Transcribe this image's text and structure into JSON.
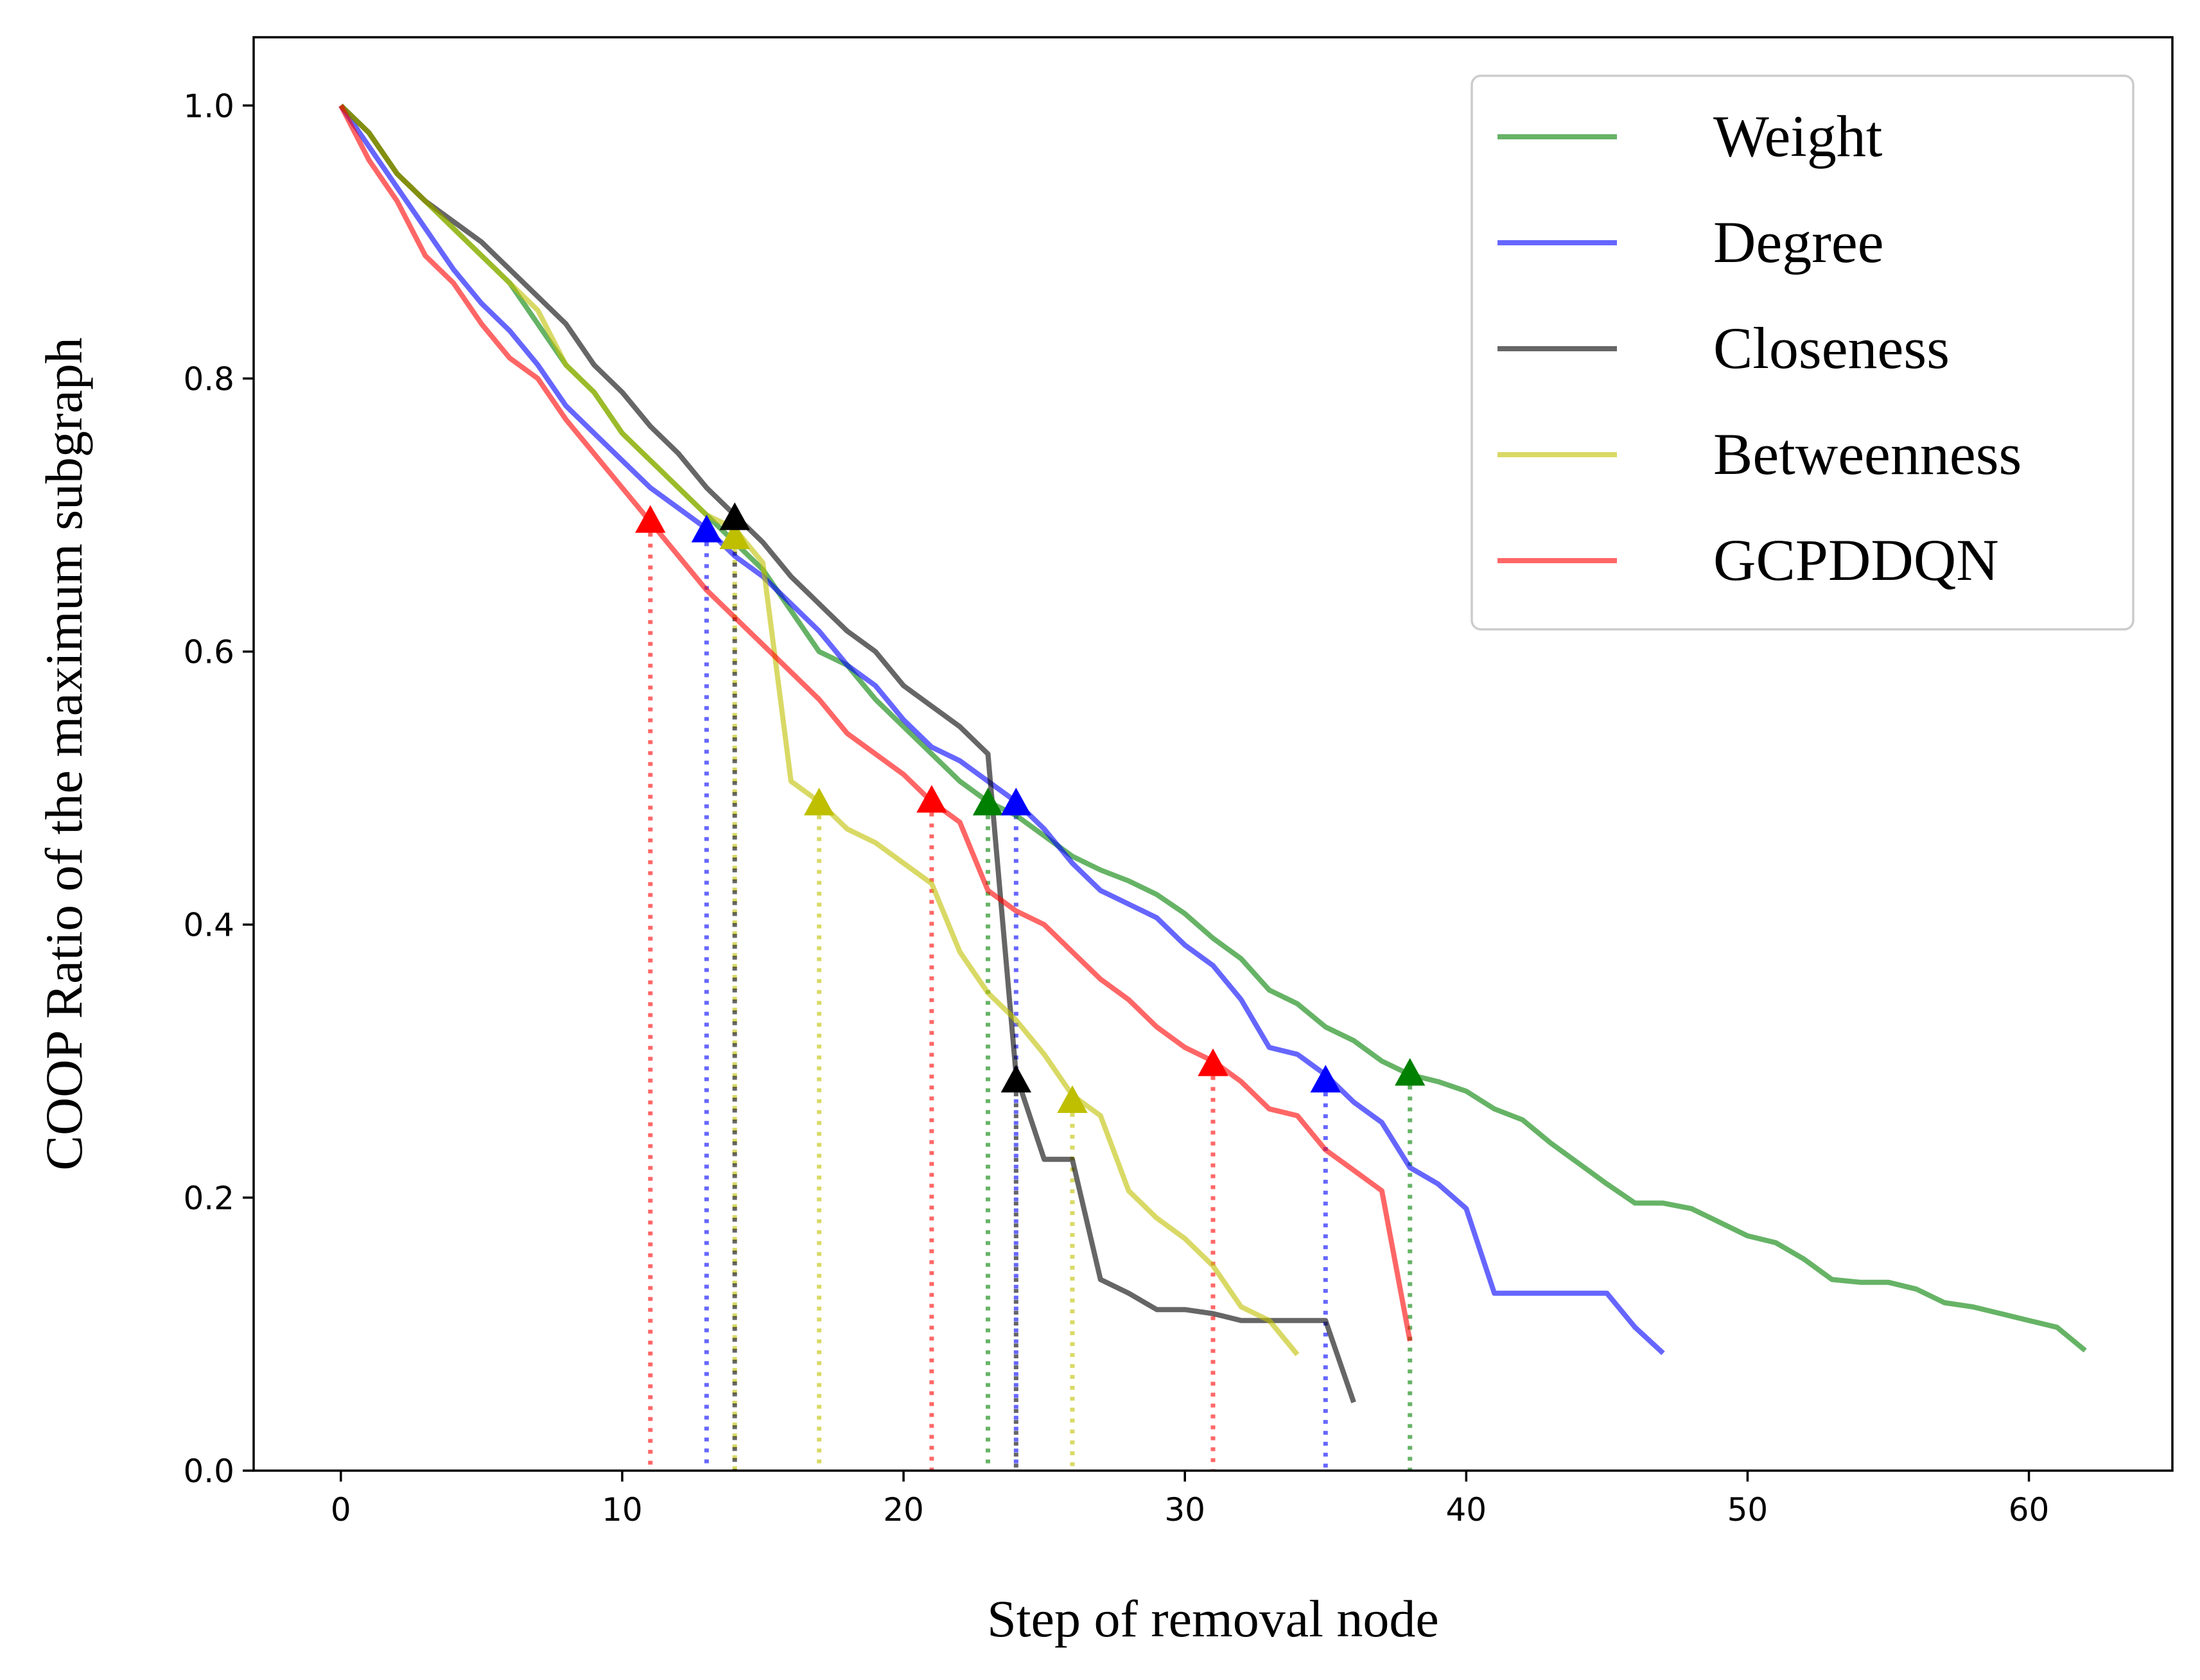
{
  "chart_data": {
    "type": "line",
    "xlabel": "Step of removal node",
    "ylabel": "COOP Ratio of the maximum subgraph",
    "xlim": [
      -3.1,
      65.1
    ],
    "ylim": [
      0.0,
      1.05
    ],
    "xticks": [
      0,
      10,
      20,
      30,
      40,
      50,
      60
    ],
    "yticks": [
      0.0,
      0.2,
      0.4,
      0.6,
      0.8,
      1.0
    ],
    "grid": false,
    "legend": "top-right",
    "series": [
      {
        "name": "Weight",
        "color": "#008000",
        "x": [
          0,
          1,
          2,
          3,
          4,
          5,
          6,
          7,
          8,
          9,
          10,
          11,
          12,
          13,
          14,
          15,
          16,
          17,
          18,
          19,
          20,
          21,
          22,
          23,
          24,
          25,
          26,
          27,
          28,
          29,
          30,
          31,
          32,
          33,
          34,
          35,
          36,
          37,
          38,
          39,
          40,
          41,
          42,
          43,
          44,
          45,
          46,
          47,
          48,
          49,
          50,
          51,
          52,
          53,
          54,
          55,
          56,
          57,
          58,
          59,
          60,
          61,
          62
        ],
        "y": [
          1.0,
          0.98,
          0.95,
          0.93,
          0.91,
          0.89,
          0.87,
          0.84,
          0.81,
          0.79,
          0.76,
          0.74,
          0.72,
          0.7,
          0.68,
          0.66,
          0.63,
          0.6,
          0.59,
          0.565,
          0.545,
          0.525,
          0.505,
          0.49,
          0.48,
          0.465,
          0.45,
          0.44,
          0.432,
          0.422,
          0.408,
          0.39,
          0.375,
          0.352,
          0.342,
          0.325,
          0.315,
          0.3,
          0.29,
          0.285,
          0.278,
          0.265,
          0.257,
          0.24,
          0.225,
          0.21,
          0.196,
          0.196,
          0.192,
          0.182,
          0.172,
          0.167,
          0.155,
          0.14,
          0.138,
          0.138,
          0.133,
          0.123,
          0.12,
          0.115,
          0.11,
          0.105,
          0.088
        ]
      },
      {
        "name": "Degree",
        "color": "#0000ff",
        "x": [
          0,
          1,
          2,
          3,
          4,
          5,
          6,
          7,
          8,
          9,
          10,
          11,
          12,
          13,
          14,
          15,
          16,
          17,
          18,
          19,
          20,
          21,
          22,
          23,
          24,
          25,
          26,
          27,
          28,
          29,
          30,
          31,
          32,
          33,
          34,
          35,
          36,
          37,
          38,
          39,
          40,
          41,
          42,
          43,
          44,
          45,
          46,
          47
        ],
        "y": [
          1.0,
          0.97,
          0.94,
          0.91,
          0.88,
          0.855,
          0.835,
          0.81,
          0.78,
          0.76,
          0.74,
          0.72,
          0.705,
          0.69,
          0.67,
          0.655,
          0.635,
          0.615,
          0.59,
          0.575,
          0.55,
          0.53,
          0.52,
          0.505,
          0.49,
          0.47,
          0.445,
          0.425,
          0.415,
          0.405,
          0.385,
          0.37,
          0.345,
          0.31,
          0.305,
          0.29,
          0.27,
          0.255,
          0.222,
          0.21,
          0.192,
          0.13,
          0.13,
          0.13,
          0.13,
          0.13,
          0.105,
          0.086
        ]
      },
      {
        "name": "Closeness",
        "color": "#000000",
        "x": [
          0,
          1,
          2,
          3,
          4,
          5,
          6,
          7,
          8,
          9,
          10,
          11,
          12,
          13,
          14,
          15,
          16,
          17,
          18,
          19,
          20,
          21,
          22,
          23,
          24,
          25,
          26,
          27,
          28,
          29,
          30,
          31,
          32,
          33,
          34,
          35,
          36
        ],
        "y": [
          1.0,
          0.98,
          0.95,
          0.93,
          0.915,
          0.9,
          0.88,
          0.86,
          0.84,
          0.81,
          0.79,
          0.765,
          0.745,
          0.72,
          0.7,
          0.68,
          0.655,
          0.635,
          0.615,
          0.6,
          0.575,
          0.56,
          0.545,
          0.525,
          0.29,
          0.228,
          0.228,
          0.14,
          0.13,
          0.118,
          0.118,
          0.115,
          0.11,
          0.11,
          0.11,
          0.11,
          0.05
        ]
      },
      {
        "name": "Betweenness",
        "color": "#bfbf00",
        "x": [
          0,
          1,
          2,
          3,
          4,
          5,
          6,
          7,
          8,
          9,
          10,
          11,
          12,
          13,
          14,
          15,
          16,
          17,
          18,
          19,
          20,
          21,
          22,
          23,
          24,
          25,
          26,
          27,
          28,
          29,
          30,
          31,
          32,
          33,
          34
        ],
        "y": [
          1.0,
          0.98,
          0.95,
          0.93,
          0.91,
          0.89,
          0.87,
          0.85,
          0.81,
          0.79,
          0.76,
          0.74,
          0.72,
          0.7,
          0.69,
          0.665,
          0.505,
          0.49,
          0.47,
          0.46,
          0.445,
          0.43,
          0.38,
          0.35,
          0.33,
          0.305,
          0.275,
          0.26,
          0.205,
          0.185,
          0.17,
          0.15,
          0.12,
          0.11,
          0.085
        ]
      },
      {
        "name": "GCPDDQN",
        "color": "#ff0000",
        "x": [
          0,
          1,
          2,
          3,
          4,
          5,
          6,
          7,
          8,
          9,
          10,
          11,
          12,
          13,
          14,
          15,
          16,
          17,
          18,
          19,
          20,
          21,
          22,
          23,
          24,
          25,
          26,
          27,
          28,
          29,
          30,
          31,
          32,
          33,
          34,
          35,
          36,
          37,
          38
        ],
        "y": [
          1.0,
          0.96,
          0.93,
          0.89,
          0.87,
          0.84,
          0.815,
          0.8,
          0.77,
          0.745,
          0.72,
          0.695,
          0.67,
          0.645,
          0.625,
          0.605,
          0.585,
          0.565,
          0.54,
          0.525,
          0.51,
          0.49,
          0.475,
          0.425,
          0.41,
          0.4,
          0.38,
          0.36,
          0.345,
          0.325,
          0.31,
          0.3,
          0.285,
          0.265,
          0.26,
          0.235,
          0.22,
          0.205,
          0.095
        ]
      }
    ],
    "markers": [
      {
        "series": "GCPDDQN",
        "color": "#ff0000",
        "x": 11,
        "y": 0.695
      },
      {
        "series": "Degree",
        "color": "#0000ff",
        "x": 13,
        "y": 0.688
      },
      {
        "series": "Betweenness",
        "color": "#bfbf00",
        "x": 14,
        "y": 0.683
      },
      {
        "series": "Closeness",
        "color": "#000000",
        "x": 14,
        "y": 0.697
      },
      {
        "series": "Betweenness",
        "color": "#bfbf00",
        "x": 17,
        "y": 0.488
      },
      {
        "series": "GCPDDQN",
        "color": "#ff0000",
        "x": 21,
        "y": 0.49
      },
      {
        "series": "Weight",
        "color": "#008000",
        "x": 23,
        "y": 0.488
      },
      {
        "series": "Degree",
        "color": "#0000ff",
        "x": 24,
        "y": 0.488
      },
      {
        "series": "Closeness",
        "color": "#000000",
        "x": 24,
        "y": 0.285
      },
      {
        "series": "Betweenness",
        "color": "#bfbf00",
        "x": 26,
        "y": 0.27
      },
      {
        "series": "GCPDDQN",
        "color": "#ff0000",
        "x": 31,
        "y": 0.297
      },
      {
        "series": "Degree",
        "color": "#0000ff",
        "x": 35,
        "y": 0.285
      },
      {
        "series": "Weight",
        "color": "#008000",
        "x": 38,
        "y": 0.29
      }
    ]
  }
}
